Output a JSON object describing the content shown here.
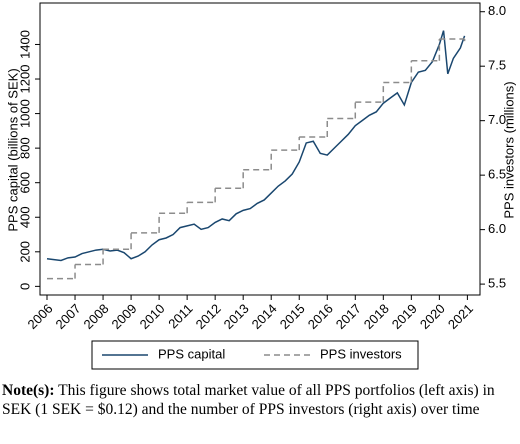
{
  "chart_data": {
    "type": "line",
    "xlim": [
      2005.75,
      2021.45
    ],
    "xticks": [
      2006,
      2007,
      2008,
      2009,
      2010,
      2011,
      2012,
      2013,
      2014,
      2015,
      2016,
      2017,
      2018,
      2019,
      2020,
      2021
    ],
    "ylabel": "PPS capital (billions of SEK)",
    "ylim": [
      -50,
      1640
    ],
    "yticks": [
      0,
      200,
      400,
      600,
      800,
      1000,
      1200,
      1400
    ],
    "y2label": "PPS investors (millions)",
    "y2lim": [
      5.4,
      8.08
    ],
    "y2ticks": [
      {
        "value": 5.5,
        "label": "5.5"
      },
      {
        "value": 6,
        "label": "6.0"
      },
      {
        "value": 6.5,
        "label": "6.5"
      },
      {
        "value": 7,
        "label": "7.0"
      },
      {
        "value": 7.5,
        "label": "7.5"
      },
      {
        "value": 8,
        "label": "8.0"
      }
    ],
    "legend": "bottom",
    "series": [
      {
        "name": "PPS capital",
        "color": "#1a476f",
        "dash": "solid",
        "x": [
          2006.0,
          2006.25,
          2006.5,
          2006.75,
          2007.0,
          2007.25,
          2007.5,
          2007.75,
          2008.0,
          2008.25,
          2008.5,
          2008.75,
          2009.0,
          2009.25,
          2009.5,
          2009.75,
          2010.0,
          2010.25,
          2010.5,
          2010.75,
          2011.0,
          2011.25,
          2011.5,
          2011.75,
          2012.0,
          2012.25,
          2012.5,
          2012.75,
          2013.0,
          2013.25,
          2013.5,
          2013.75,
          2014.0,
          2014.25,
          2014.5,
          2014.75,
          2015.0,
          2015.25,
          2015.5,
          2015.75,
          2016.0,
          2016.25,
          2016.5,
          2016.75,
          2017.0,
          2017.25,
          2017.5,
          2017.75,
          2018.0,
          2018.25,
          2018.5,
          2018.75,
          2019.0,
          2019.25,
          2019.5,
          2019.75,
          2020.0,
          2020.15,
          2020.3,
          2020.5,
          2020.75,
          2020.9
        ],
        "values": [
          160,
          155,
          150,
          165,
          170,
          190,
          200,
          210,
          215,
          205,
          210,
          195,
          160,
          175,
          200,
          240,
          270,
          280,
          300,
          340,
          350,
          360,
          330,
          340,
          370,
          390,
          380,
          420,
          440,
          450,
          480,
          500,
          540,
          580,
          610,
          650,
          720,
          830,
          840,
          770,
          760,
          800,
          840,
          880,
          930,
          960,
          990,
          1010,
          1060,
          1090,
          1120,
          1050,
          1180,
          1240,
          1250,
          1300,
          1400,
          1480,
          1230,
          1320,
          1380,
          1450
        ]
      },
      {
        "name": "PPS investors",
        "color": "#8c8c8c",
        "dash": "dashed",
        "axis": "y2",
        "drawstyle": "steps-post",
        "x": [
          2006,
          2007,
          2008,
          2009,
          2010,
          2011,
          2012,
          2013,
          2014,
          2015,
          2016,
          2017,
          2018,
          2019,
          2020,
          2020.9
        ],
        "values": [
          5.55,
          5.68,
          5.82,
          5.97,
          6.15,
          6.25,
          6.38,
          6.55,
          6.73,
          6.85,
          7.02,
          7.17,
          7.35,
          7.55,
          7.75,
          7.73
        ]
      }
    ]
  },
  "note": {
    "label": "Note(s):",
    "text": "This figure shows total market value of all PPS portfolios (left axis) in SEK (1 SEK = $0.12) and the number of PPS investors (right axis) over time"
  }
}
